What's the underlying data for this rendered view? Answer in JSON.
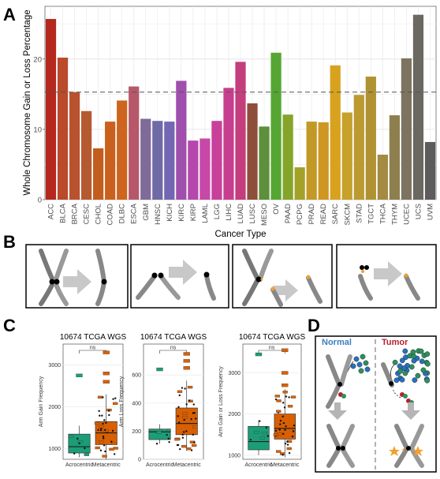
{
  "panels": {
    "a": "A",
    "b": "B",
    "c": "C",
    "d": "D"
  },
  "chart_data": [
    {
      "type": "bar",
      "ylabel": "Whole Chromosome Gain or Loss Percentage",
      "xlabel": "Cancer Type",
      "ylim": [
        0,
        27.5
      ],
      "yticks": [
        0,
        10,
        20
      ],
      "reference_line": 15.3,
      "categories": [
        "ACC",
        "BLCA",
        "BRCA",
        "CESC",
        "CHOL",
        "COAD",
        "DLBC",
        "ESCA",
        "GBM",
        "HNSC",
        "KICH",
        "KIRC",
        "KIRP",
        "LAML",
        "LGG",
        "LIHC",
        "LUAD",
        "LUSC",
        "MESO",
        "OV",
        "PAAD",
        "PCPG",
        "PRAD",
        "READ",
        "SARC",
        "SKCM",
        "STAD",
        "TGCT",
        "THCA",
        "THYM",
        "UCEC",
        "UCS",
        "UVM"
      ],
      "values": [
        25.7,
        20.2,
        15.3,
        12.6,
        7.3,
        11.1,
        14.1,
        16.1,
        11.5,
        11.2,
        11.1,
        16.9,
        8.4,
        8.7,
        11.2,
        15.9,
        19.6,
        13.7,
        10.4,
        20.9,
        12.1,
        4.6,
        11.1,
        11.0,
        19.1,
        12.4,
        14.9,
        17.5,
        6.4,
        12.0,
        20.1,
        26.3,
        8.2
      ],
      "colors": [
        "#b5281e",
        "#b94a2a",
        "#b9522e",
        "#b55a30",
        "#c25d1e",
        "#c9611d",
        "#cd651f",
        "#b6586a",
        "#7e6b9a",
        "#6e6aa6",
        "#7366b2",
        "#a04fad",
        "#b548ac",
        "#c848a8",
        "#c8409a",
        "#c63f8f",
        "#c43d7c",
        "#8f4d3c",
        "#5e8f3c",
        "#56a634",
        "#84a52a",
        "#a4a128",
        "#c29925",
        "#cf9722",
        "#d8a21f",
        "#c6a12b",
        "#bb9a30",
        "#b09233",
        "#a58a42",
        "#8d7f4e",
        "#7d7460",
        "#6a6860",
        "#5c5c5c"
      ]
    },
    {
      "type": "box",
      "title": "10674 TCGA WGS",
      "ylabel": "Arm Gain Frequency",
      "categories": [
        "Acrocentric",
        "Metacentric"
      ],
      "significance": "ns",
      "ylim": [
        750,
        3500
      ],
      "yticks": [
        1000,
        2000,
        3000
      ],
      "boxes": [
        {
          "q1": 900,
          "median": 1050,
          "q3": 1350,
          "min": 800,
          "max": 1550,
          "outliers": [
            2750
          ]
        },
        {
          "q1": 1100,
          "median": 1380,
          "q3": 1650,
          "min": 750,
          "max": 2300,
          "outliers": [
            2600,
            2800,
            3300
          ]
        }
      ]
    },
    {
      "type": "box",
      "title": "10674 TCGA WGS",
      "ylabel": "Arm Loss Frequency",
      "categories": [
        "Acrocentric",
        "Metacentric"
      ],
      "significance": "ns",
      "ylim": [
        0,
        820
      ],
      "yticks": [
        0,
        200,
        400,
        600
      ],
      "boxes": [
        {
          "q1": 140,
          "median": 195,
          "q3": 215,
          "min": 110,
          "max": 250,
          "outliers": [
            640
          ]
        },
        {
          "q1": 175,
          "median": 255,
          "q3": 365,
          "min": 60,
          "max": 560,
          "outliers": [
            650,
            700,
            750
          ]
        }
      ]
    },
    {
      "type": "box",
      "title": "10674 TCGA WGS",
      "ylabel": "Arm Gain or Loss Frequency",
      "categories": [
        "Acrocentric",
        "Metacentric"
      ],
      "significance": "ns",
      "ylim": [
        900,
        3700
      ],
      "yticks": [
        1000,
        2000,
        3000
      ],
      "boxes": [
        {
          "q1": 1130,
          "median": 1330,
          "q3": 1700,
          "min": 1000,
          "max": 1850,
          "outliers": [
            3450
          ]
        },
        {
          "q1": 1390,
          "median": 1650,
          "q3": 2000,
          "min": 950,
          "max": 2600,
          "outliers": [
            2700,
            3000,
            3550
          ]
        }
      ]
    }
  ],
  "panel_d": {
    "normal_label": "Normal",
    "tumor_label": "Tumor",
    "normal_color": "#3b7fc4",
    "tumor_color": "#b8202e"
  },
  "colors": {
    "acrocentric_fill": "#1b9e77",
    "metacentric_fill": "#d95f02",
    "sphere_blue": "#2a6fb8",
    "sphere_green": "#2f8f5b"
  }
}
